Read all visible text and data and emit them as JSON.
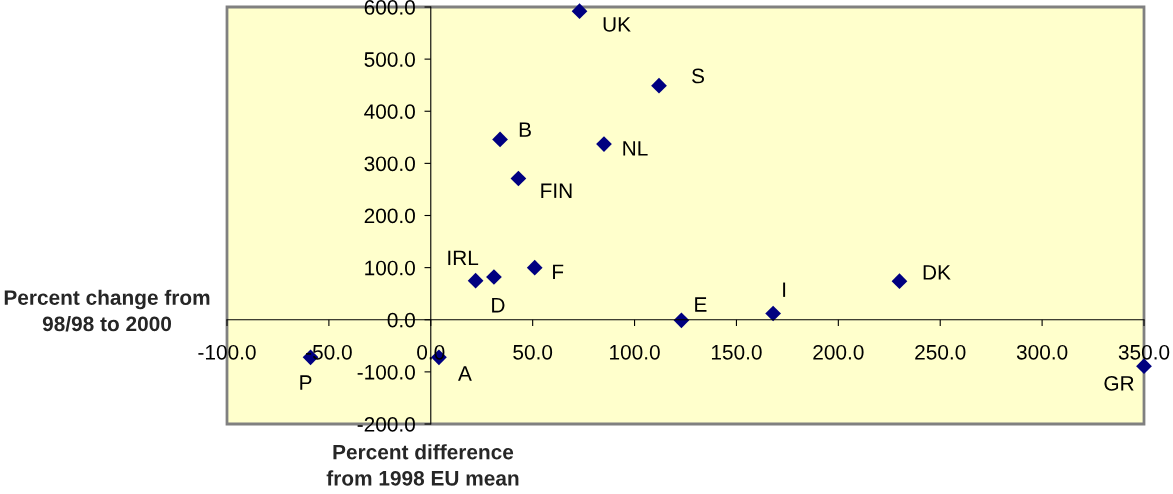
{
  "chart_data": {
    "type": "scatter",
    "xlabel": "Percent difference\nfrom 1998 EU mean",
    "ylabel": "Percent change from\n98/98 to 2000",
    "x": [
      73,
      112,
      34,
      85,
      43,
      22,
      31,
      51,
      123,
      168,
      230,
      350,
      -59,
      4
    ],
    "series": [
      {
        "color": "#000080",
        "values": [
          592,
          449,
          346,
          337,
          271,
          75,
          82,
          100,
          -1,
          12,
          74,
          -89,
          -72,
          -72
        ]
      }
    ],
    "annotations": [
      {
        "text": "UK",
        "x": 73,
        "y": 592
      },
      {
        "text": "S",
        "x": 112,
        "y": 449
      },
      {
        "text": "B",
        "x": 34,
        "y": 346
      },
      {
        "text": "NL",
        "x": 85,
        "y": 337
      },
      {
        "text": "FIN",
        "x": 43,
        "y": 271
      },
      {
        "text": "IRL",
        "x": 22,
        "y": 75
      },
      {
        "text": "D",
        "x": 31,
        "y": 82
      },
      {
        "text": "F",
        "x": 51,
        "y": 100
      },
      {
        "text": "E",
        "x": 123,
        "y": -1
      },
      {
        "text": "I",
        "x": 168,
        "y": 12
      },
      {
        "text": "DK",
        "x": 230,
        "y": 74
      },
      {
        "text": "GR",
        "x": 350,
        "y": -89
      },
      {
        "text": "P",
        "x": -59,
        "y": -72
      },
      {
        "text": "A",
        "x": 4,
        "y": -72
      }
    ],
    "xlim": [
      -100,
      350
    ],
    "xticks": [
      {
        "value": -100,
        "label": "-100.0"
      },
      {
        "value": -50,
        "label": "-50.0"
      },
      {
        "value": 0,
        "label": "0.0"
      },
      {
        "value": 50,
        "label": "50.0"
      },
      {
        "value": 100,
        "label": "100.0"
      },
      {
        "value": 150,
        "label": "150.0"
      },
      {
        "value": 200,
        "label": "200.0"
      },
      {
        "value": 250,
        "label": "250.0"
      },
      {
        "value": 300,
        "label": "300.0"
      },
      {
        "value": 350,
        "label": "350.0"
      }
    ],
    "ylim": [
      -200,
      600
    ],
    "yticks": [
      {
        "value": -200,
        "label": "-200.0"
      },
      {
        "value": -100,
        "label": "-100.0"
      },
      {
        "value": 0,
        "label": "0.0"
      },
      {
        "value": 100,
        "label": "100.0"
      },
      {
        "value": 200,
        "label": "200.0"
      },
      {
        "value": 300,
        "label": "300.0"
      },
      {
        "value": 400,
        "label": "400.0"
      },
      {
        "value": 500,
        "label": "500.0"
      },
      {
        "value": 600,
        "label": "600.0"
      }
    ],
    "marker": "diamond",
    "grid": false
  }
}
